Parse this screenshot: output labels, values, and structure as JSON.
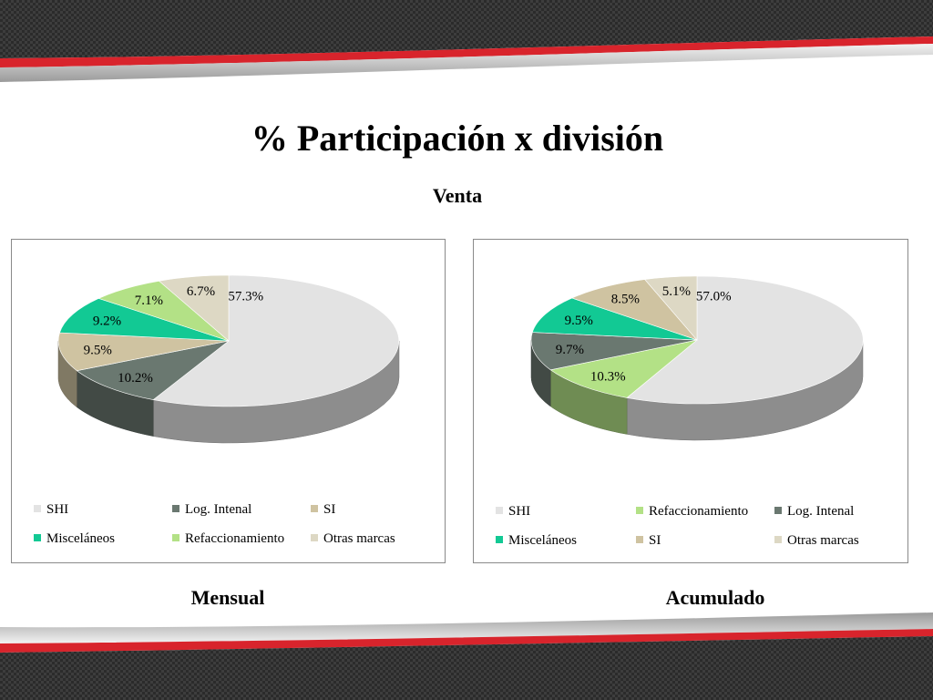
{
  "slide": {
    "title": "% Participación x división",
    "subtitle": "Venta"
  },
  "chart_data": [
    {
      "type": "pie",
      "caption": "Mensual",
      "slices": [
        {
          "label": "SHI",
          "value": 57.3,
          "display": "57.3%",
          "color": "#e3e3e3"
        },
        {
          "label": "Log. Intenal",
          "value": 10.2,
          "display": "10.2%",
          "color": "#6a7870"
        },
        {
          "label": "SI",
          "value": 9.5,
          "display": "9.5%",
          "color": "#cfc3a1"
        },
        {
          "label": "Misceláneos",
          "value": 9.2,
          "display": "9.2%",
          "color": "#12c994"
        },
        {
          "label": "Refaccionamiento",
          "value": 7.1,
          "display": "7.1%",
          "color": "#b3e186"
        },
        {
          "label": "Otras marcas",
          "value": 6.7,
          "display": "6.7%",
          "color": "#ddd8c4"
        }
      ],
      "legend": [
        "SHI",
        "Log. Intenal",
        "SI",
        "Misceláneos",
        "Refaccionamiento",
        "Otras marcas"
      ],
      "legend_position": "bottom"
    },
    {
      "type": "pie",
      "caption": "Acumulado",
      "slices": [
        {
          "label": "SHI",
          "value": 57.0,
          "display": "57.0%",
          "color": "#e3e3e3"
        },
        {
          "label": "Refaccionamiento",
          "value": 10.3,
          "display": "10.3%",
          "color": "#b3e186"
        },
        {
          "label": "Log. Intenal",
          "value": 9.7,
          "display": "9.7%",
          "color": "#6a7870"
        },
        {
          "label": "Misceláneos",
          "value": 9.5,
          "display": "9.5%",
          "color": "#12c994"
        },
        {
          "label": "SI",
          "value": 8.5,
          "display": "8.5%",
          "color": "#cfc3a1"
        },
        {
          "label": "Otras marcas",
          "value": 5.1,
          "display": "5.1%",
          "color": "#ddd8c4"
        }
      ],
      "legend": [
        "SHI",
        "Refaccionamiento",
        "Log. Intenal",
        "Misceláneos",
        "SI",
        "Otras marcas"
      ],
      "legend_position": "bottom"
    }
  ]
}
